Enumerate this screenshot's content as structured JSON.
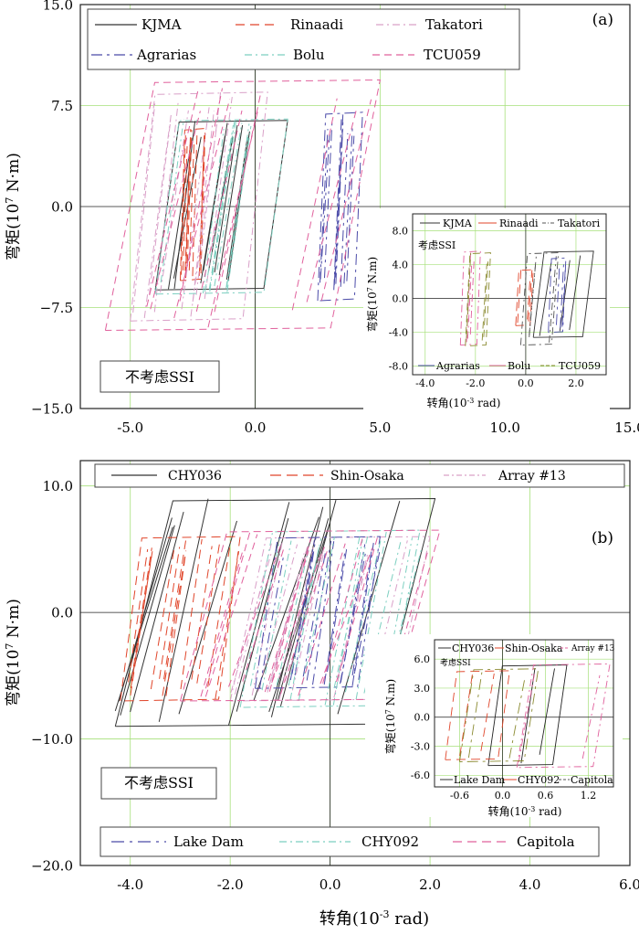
{
  "chart_data": [
    {
      "type": "line",
      "panel": "(a)",
      "xlabel": "",
      "ylabel": "弯矩(10^7 N·m)",
      "ylabel_main": "弯矩(10",
      "ylabel_sup": "7",
      "ylabel_unit": " N·m)",
      "xlim": [
        -7.0,
        15.0
      ],
      "ylim": [
        -15.0,
        15.0
      ],
      "xticks": [
        "-5.0",
        "0.0",
        "5.0",
        "10.0",
        "15.0"
      ],
      "yticks": [
        "15.0",
        "7.5",
        "0.0",
        "−7.5",
        "−15.0"
      ],
      "legend": [
        "KJMA",
        "Rinaadi",
        "Takatori",
        "Agrarias",
        "Bolu",
        "TCU059"
      ],
      "annotation": "不考虑SSI",
      "series": [
        {
          "name": "KJMA",
          "color": "#333333",
          "x_range": [
            -4.0,
            1.3
          ],
          "m_range": [
            -6.2,
            6.4
          ]
        },
        {
          "name": "Rinaadi",
          "color": "#e0452a",
          "x_range": [
            -3.0,
            -2.0
          ],
          "m_range": [
            -5.5,
            5.8
          ]
        },
        {
          "name": "Takatori",
          "color": "#d9a0c8",
          "x_range": [
            -5.0,
            0.5
          ],
          "m_range": [
            -8.5,
            8.5
          ]
        },
        {
          "name": "Agrarias",
          "color": "#4a4aa8",
          "x_range": [
            2.5,
            4.3
          ],
          "m_range": [
            -7.0,
            7.0
          ]
        },
        {
          "name": "Bolu",
          "color": "#7ccfc0",
          "x_range": [
            -4.0,
            1.3
          ],
          "m_range": [
            -6.5,
            6.5
          ]
        },
        {
          "name": "TCU059",
          "color": "#e0609c",
          "x_range": [
            -6.0,
            5.0
          ],
          "m_range": [
            -9.2,
            9.4
          ]
        }
      ],
      "inset": {
        "label": "考虑SSI",
        "xlabel": "转角(10^-3 rad)",
        "xlabel_main": "转角(10",
        "xlabel_sup": "-3",
        "xlabel_unit": " rad)",
        "ylabel": "弯矩(10^7 N.m)",
        "ylabel_main": "弯矩(10",
        "ylabel_sup": "7",
        "ylabel_unit": " N.m)",
        "xlim": [
          -4.5,
          3.2
        ],
        "ylim": [
          -9.0,
          10.0
        ],
        "xticks": [
          "-4.0",
          "-2.0",
          "0.0",
          "2.0"
        ],
        "yticks": [
          "8.0",
          "4.0",
          "0.0",
          "-4.0",
          "-8.0"
        ],
        "legend_top": [
          "KJMA",
          "Rinaadi",
          "Takatori"
        ],
        "legend_bottom": [
          "Agrarias",
          "Bolu",
          "TCU059"
        ]
      }
    },
    {
      "type": "line",
      "panel": "(b)",
      "xlabel": "转角(10^-3 rad)",
      "xlabel_main": "转角(10",
      "xlabel_sup": "-3",
      "xlabel_unit": " rad)",
      "ylabel": "弯矩(10^7 N·m)",
      "ylabel_main": "弯矩(10",
      "ylabel_sup": "7",
      "ylabel_unit": " N·m)",
      "xlim": [
        -5.0,
        6.0
      ],
      "ylim": [
        -20.0,
        12.0
      ],
      "xticks": [
        "-4.0",
        "-2.0",
        "0.0",
        "2.0",
        "4.0",
        "6.0"
      ],
      "yticks": [
        "10.0",
        "0.0",
        "−10.0",
        "−20.0"
      ],
      "legend_top": [
        "CHY036",
        "Shin-Osaka",
        "Array #13"
      ],
      "legend_bottom": [
        "Lake Dam",
        "CHY092",
        "Capitola"
      ],
      "annotation": "不考虑SSI",
      "series": [
        {
          "name": "CHY036",
          "color": "#333333",
          "x_range": [
            -4.3,
            2.1
          ],
          "m_range": [
            -9.0,
            9.0
          ]
        },
        {
          "name": "Shin-Osaka",
          "color": "#e0452a",
          "x_range": [
            -4.2,
            -1.8
          ],
          "m_range": [
            -7.0,
            6.0
          ]
        },
        {
          "name": "Array #13",
          "color": "#d9a0c8",
          "x_range": [
            -2.0,
            2.0
          ],
          "m_range": [
            -7.0,
            6.0
          ]
        },
        {
          "name": "Lake Dam",
          "color": "#4a4aa8",
          "x_range": [
            -1.5,
            1.0
          ],
          "m_range": [
            -6.0,
            6.0
          ]
        },
        {
          "name": "CHY092",
          "color": "#7ccfc0",
          "x_range": [
            -1.8,
            1.8
          ],
          "m_range": [
            -7.5,
            6.5
          ]
        },
        {
          "name": "Capitola",
          "color": "#e0609c",
          "x_range": [
            -3.0,
            2.2
          ],
          "m_range": [
            -7.0,
            6.5
          ]
        }
      ],
      "inset": {
        "label": "考虑SSI",
        "xlabel": "转角(10^-3 rad)",
        "xlabel_main": "转角(10",
        "xlabel_sup": "-3",
        "xlabel_unit": " rad)",
        "ylabel": "弯矩(10^7 N.m)",
        "ylabel_main": "弯矩(10",
        "ylabel_sup": "7",
        "ylabel_unit": " N.m)",
        "xlim": [
          -0.95,
          1.55
        ],
        "ylim": [
          -7.2,
          8.0
        ],
        "xticks": [
          "-0.6",
          "0.0",
          "0.6",
          "1.2"
        ],
        "yticks": [
          "6.0",
          "3.0",
          "0.0",
          "-3.0",
          "-6.0"
        ],
        "legend_top": [
          "CHY036",
          "Shin-Osaka",
          "Array #13"
        ],
        "legend_bottom": [
          "Lake Dam",
          "CHY092",
          "Capitola"
        ]
      }
    }
  ]
}
